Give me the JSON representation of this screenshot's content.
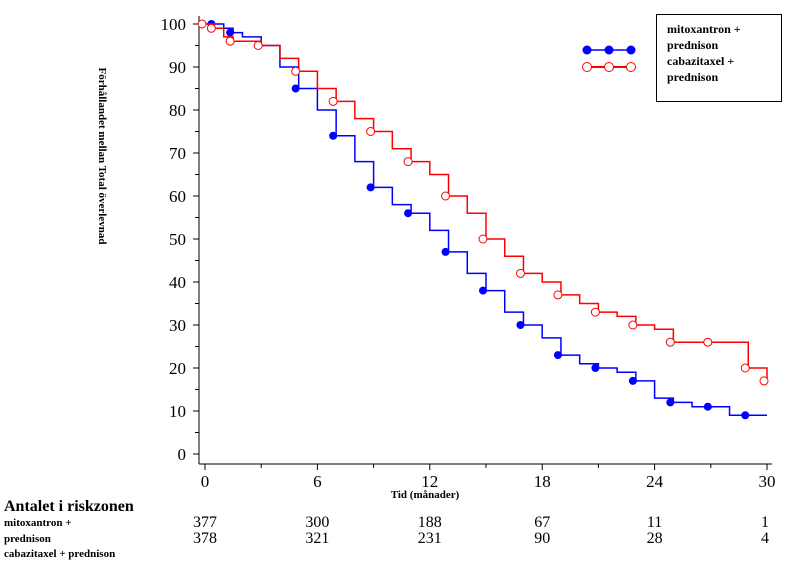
{
  "chart_data": {
    "type": "line",
    "title": "",
    "xlabel": "Tid (månader)",
    "ylabel": "Förhållandet mellan Total överlevnad",
    "xlim": [
      0,
      30
    ],
    "ylim": [
      0,
      100
    ],
    "x_ticks": [
      "0",
      "6",
      "12",
      "18",
      "24",
      "30"
    ],
    "y_ticks": [
      "0",
      "10",
      "20",
      "30",
      "40",
      "50",
      "60",
      "70",
      "80",
      "90",
      "100"
    ],
    "legend_position": "top-right",
    "series": [
      {
        "name": "mitoxantron + prednison",
        "color": "#0000ff",
        "marker": "filled-circle",
        "x": [
          0,
          0.5,
          1,
          1.5,
          2,
          3,
          4,
          5,
          6,
          7,
          8,
          9,
          10,
          11,
          12,
          13,
          14,
          15,
          16,
          17,
          18,
          19,
          20,
          21,
          22,
          23,
          24,
          25,
          26,
          27,
          28,
          29,
          30
        ],
        "y": [
          100,
          100,
          99,
          98,
          97,
          95,
          90,
          85,
          80,
          74,
          68,
          62,
          58,
          56,
          52,
          47,
          42,
          38,
          33,
          30,
          27,
          23,
          21,
          20,
          19,
          17,
          13,
          12,
          11,
          11,
          9,
          9,
          9
        ]
      },
      {
        "name": "cabazitaxel + prednison",
        "color": "#ff0000",
        "marker": "open-circle",
        "x": [
          0,
          0.5,
          1,
          1.5,
          2,
          3,
          4,
          5,
          6,
          7,
          8,
          9,
          10,
          11,
          12,
          13,
          14,
          15,
          16,
          17,
          18,
          19,
          20,
          21,
          22,
          23,
          24,
          25,
          26,
          27,
          28,
          29,
          29.5,
          30
        ],
        "y": [
          100,
          99,
          97,
          96,
          96,
          95,
          92,
          89,
          85,
          82,
          78,
          75,
          71,
          68,
          65,
          60,
          56,
          50,
          46,
          42,
          40,
          37,
          35,
          33,
          32,
          30,
          29,
          26,
          26,
          26,
          26,
          20,
          20,
          17
        ]
      }
    ],
    "at_risk": {
      "title": "Antalet i riskzonen",
      "labels": [
        "mitoxantron +",
        "prednison",
        "cabazitaxel + prednison"
      ],
      "rows": [
        {
          "name": "mitoxantron + prednison",
          "values": [
            "377",
            "300",
            "188",
            "67",
            "11",
            "1"
          ]
        },
        {
          "name": "cabazitaxel + prednison",
          "values": [
            "378",
            "321",
            "231",
            "90",
            "28",
            "4"
          ]
        }
      ]
    },
    "legend_lines": [
      "mitoxantron +",
      "prednison",
      "cabazitaxel +",
      "prednison"
    ]
  }
}
